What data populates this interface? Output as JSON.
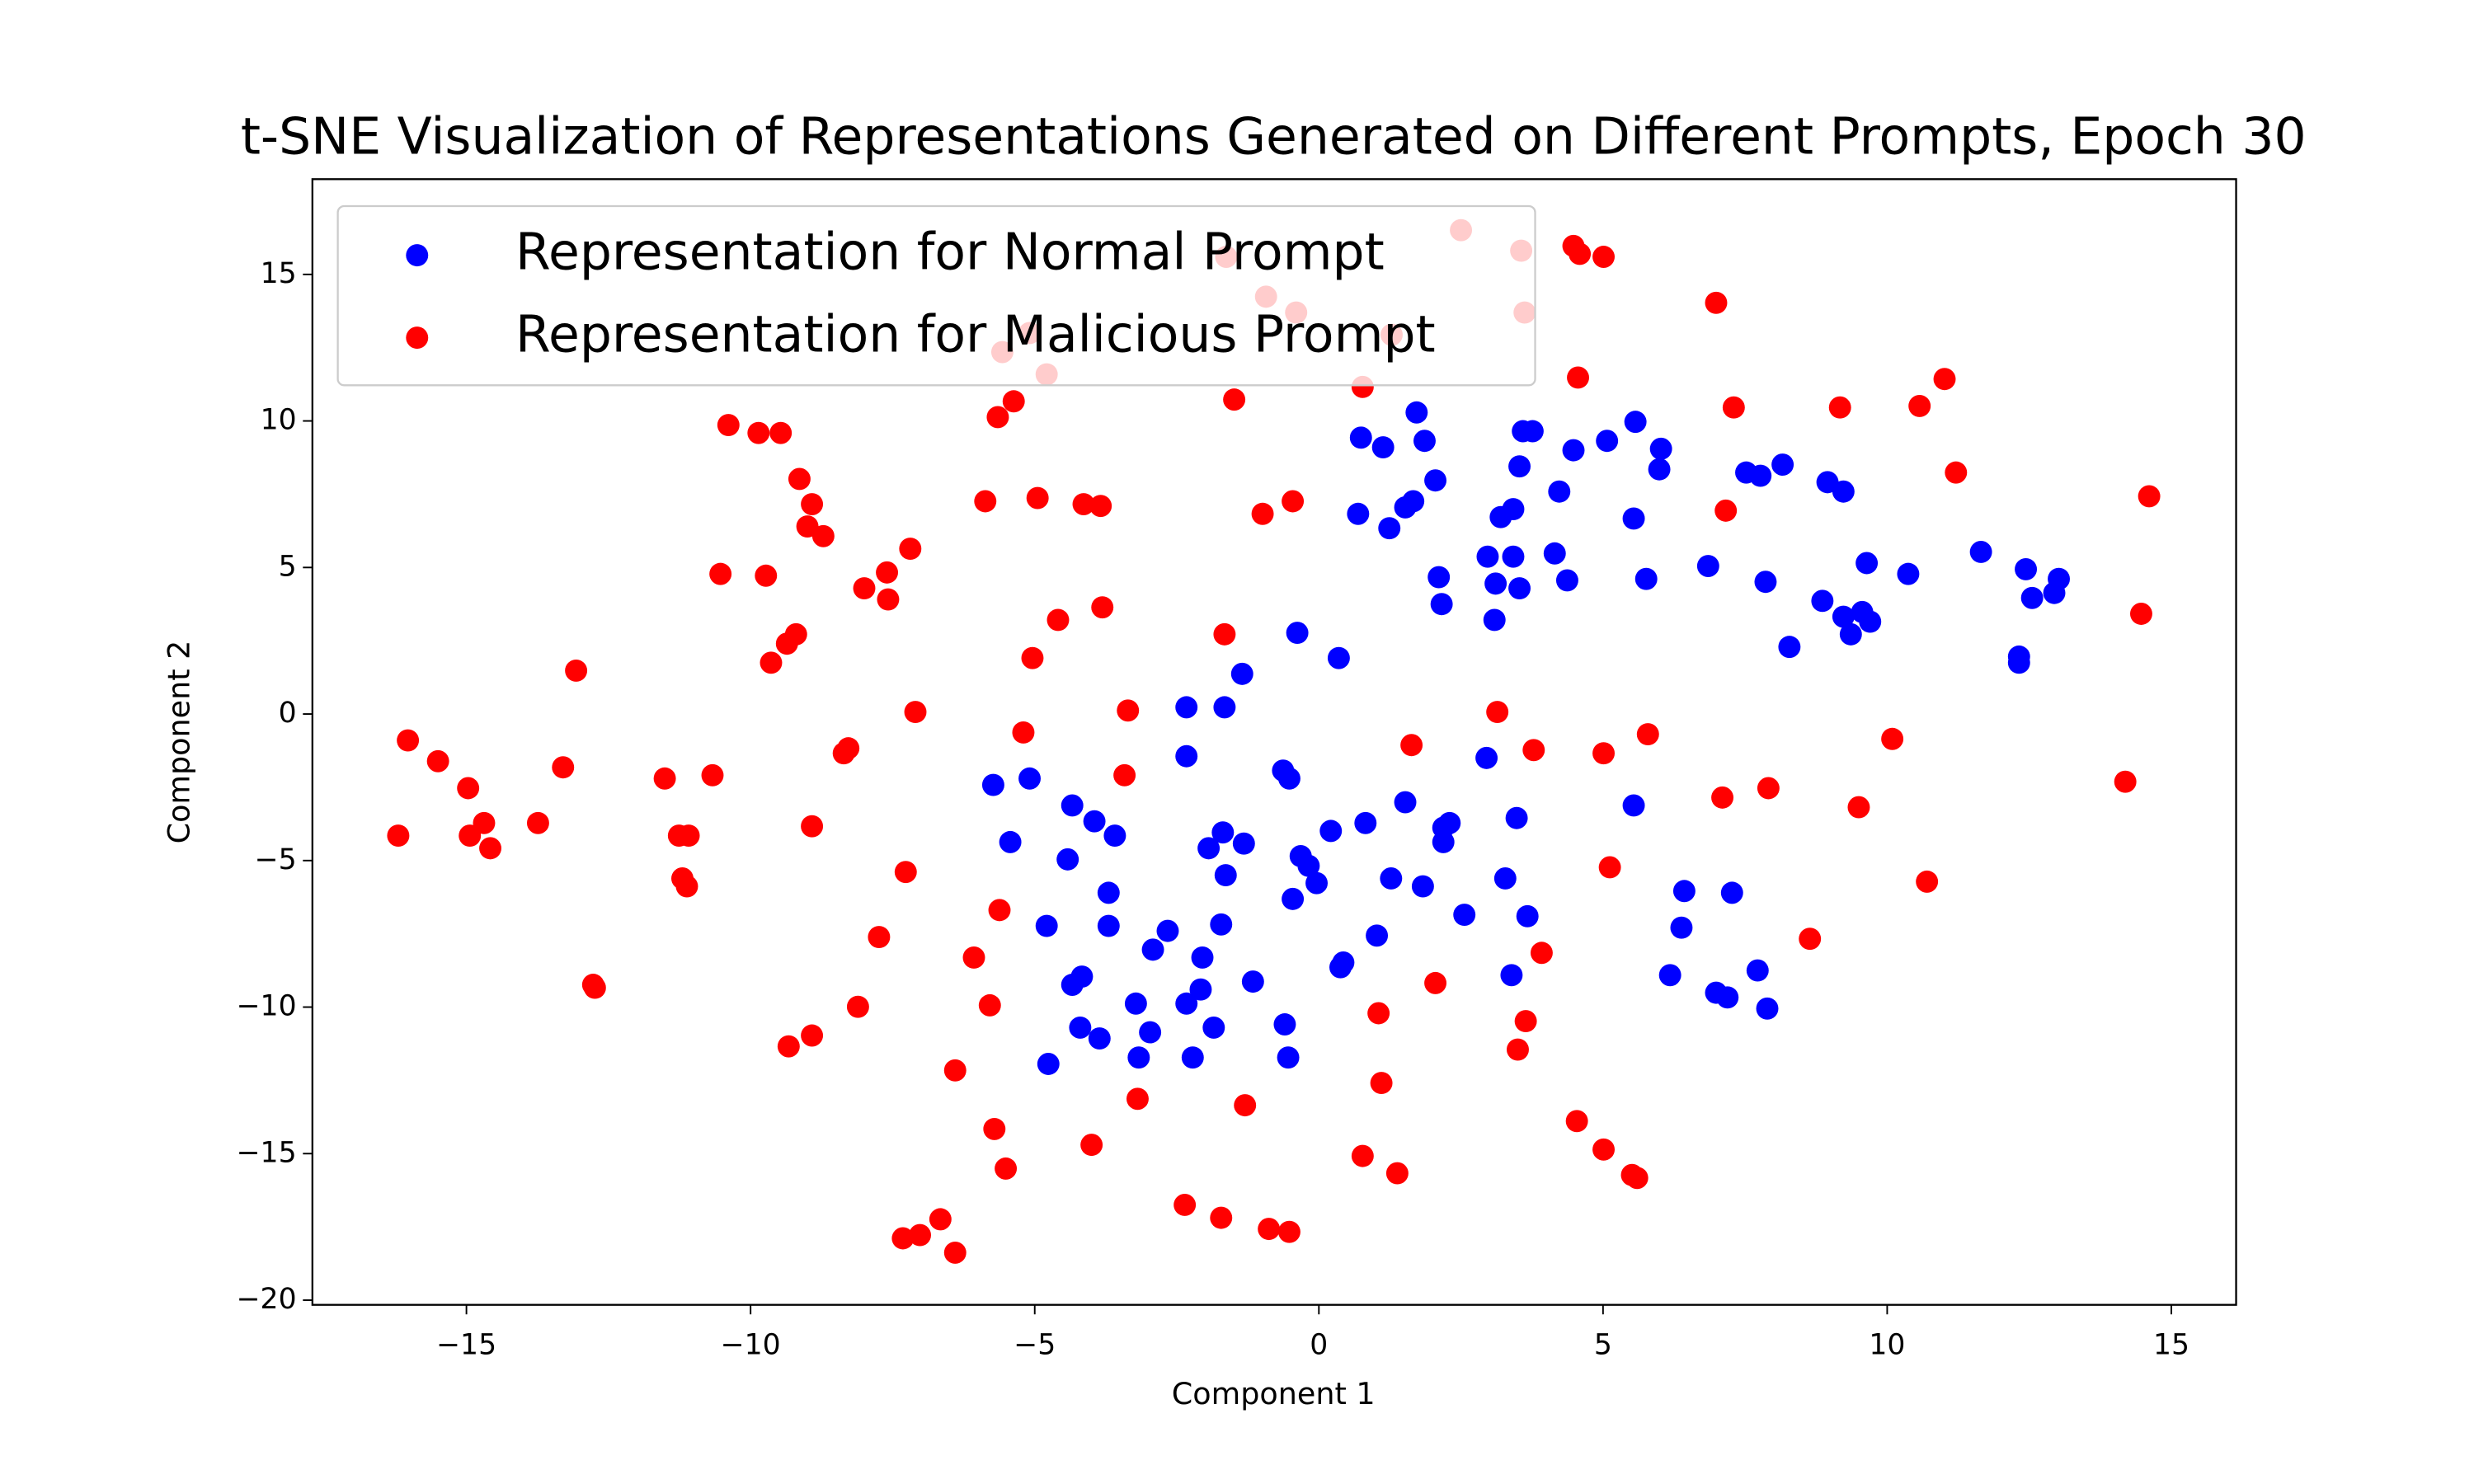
{
  "chart_data": {
    "type": "scatter",
    "title": "t-SNE Visualization of Representations Generated on Different Prompts, Epoch 30",
    "x_label": "Component 1",
    "y_label": "Component 2",
    "xlim": [
      -17.71,
      16.14
    ],
    "ylim": [
      -20.16,
      18.25
    ],
    "xticks": [
      {
        "value": -15,
        "label": "−15"
      },
      {
        "value": -10,
        "label": "−10"
      },
      {
        "value": -5,
        "label": "−5"
      },
      0,
      5,
      10,
      15
    ],
    "yticks": [
      {
        "value": -20,
        "label": "−20"
      },
      {
        "value": -15,
        "label": "−15"
      },
      {
        "value": -10,
        "label": "−10"
      },
      {
        "value": -5,
        "label": "−5"
      },
      0,
      5,
      10,
      15
    ],
    "legend": "upper left",
    "series": [
      {
        "name": "Representation for Normal Prompt",
        "color": "#0000ff",
        "x": [
          1.72,
          0.74,
          1.13,
          1.86,
          3.59,
          3.76,
          5.57,
          4.48,
          6.02,
          5.07,
          5.99,
          2.05,
          3.53,
          7.52,
          7.77,
          8.16,
          8.95,
          9.23,
          4.23,
          1.66,
          1.52,
          0.69,
          1.24,
          3.2,
          3.42,
          5.54,
          2.97,
          3.42,
          4.15,
          3.11,
          3.53,
          4.37,
          2.11,
          2.16,
          3.09,
          5.76,
          6.85,
          7.86,
          9.64,
          10.37,
          11.65,
          12.44,
          13.02,
          12.94,
          12.55,
          8.86,
          9.23,
          9.56,
          9.7,
          9.36,
          8.28,
          12.32,
          12.32,
          -0.38,
          0.35,
          -1.35,
          -2.33,
          -1.66,
          -2.33,
          -0.63,
          -0.52,
          -5.73,
          -5.09,
          -4.34,
          -3.95,
          -3.59,
          -5.43,
          -4.42,
          -1.94,
          -1.69,
          -1.32,
          -1.64,
          0.21,
          -0.32,
          -0.18,
          -0.04,
          -0.46,
          0.82,
          1.52,
          2.19,
          2.3,
          2.19,
          1.27,
          1.83,
          3.28,
          3.48,
          2.95,
          3.67,
          2.56,
          5.54,
          6.43,
          7.27,
          6.38,
          -3.7,
          -3.7,
          -4.79,
          -2.66,
          -1.72,
          -2.92,
          -2.05,
          1.02,
          0.38,
          0.43,
          -1.16,
          -2.08,
          -4.17,
          -4.34,
          -3.22,
          -2.33,
          -0.6,
          -4.2,
          -3.86,
          -2.97,
          -1.85,
          -3.17,
          -2.22,
          -0.54,
          -4.76,
          3.39,
          6.18,
          6.99,
          7.19,
          7.72,
          7.89
        ],
        "values": [
          10.29,
          9.43,
          9.1,
          9.32,
          9.65,
          9.65,
          9.97,
          9.0,
          9.05,
          9.32,
          8.35,
          7.97,
          8.45,
          8.24,
          8.13,
          8.51,
          7.91,
          7.59,
          7.59,
          7.26,
          7.05,
          6.83,
          6.34,
          6.72,
          6.99,
          6.67,
          5.37,
          5.37,
          5.48,
          4.45,
          4.29,
          4.56,
          4.67,
          3.75,
          3.21,
          4.61,
          5.05,
          4.51,
          5.15,
          4.78,
          5.53,
          4.94,
          4.61,
          4.13,
          3.96,
          3.86,
          3.32,
          3.48,
          3.15,
          2.72,
          2.29,
          1.96,
          1.75,
          2.77,
          1.91,
          1.37,
          0.23,
          0.23,
          -1.44,
          -1.93,
          -2.2,
          -2.42,
          -2.2,
          -3.12,
          -3.66,
          -4.15,
          -4.37,
          -4.96,
          -4.58,
          -4.04,
          -4.42,
          -5.5,
          -3.99,
          -4.85,
          -5.18,
          -5.77,
          -6.31,
          -3.72,
          -3.01,
          -3.88,
          -3.72,
          -4.37,
          -5.61,
          -5.88,
          -5.61,
          -3.55,
          -1.5,
          -6.9,
          -6.85,
          -3.12,
          -6.04,
          -6.1,
          -7.29,
          -6.1,
          -7.23,
          -7.23,
          -7.4,
          -7.18,
          -8.04,
          -8.31,
          -7.56,
          -8.64,
          -8.48,
          -9.13,
          -9.4,
          -8.96,
          -9.24,
          -9.88,
          -9.88,
          -10.59,
          -10.7,
          -11.07,
          -10.86,
          -10.7,
          -11.72,
          -11.72,
          -11.72,
          -11.94,
          -8.91,
          -8.91,
          -9.51,
          -9.67,
          -8.75,
          -10.05
        ]
      },
      {
        "name": "Representation for Malicious Prompt",
        "color": "#ff0000",
        "x": [
          2.5,
          4.48,
          4.59,
          5.01,
          3.56,
          -1.63,
          -0.93,
          -0.4,
          6.99,
          3.62,
          1.28,
          -5.09,
          -5.57,
          -4.79,
          4.56,
          0.77,
          11.01,
          -5.37,
          -5.65,
          -1.49,
          7.3,
          9.17,
          10.57,
          -10.39,
          -9.86,
          -9.47,
          -9.14,
          11.21,
          -8.92,
          -9.0,
          -8.72,
          -5.87,
          -4.95,
          -4.14,
          -3.84,
          -0.99,
          -0.46,
          7.16,
          14.61,
          -10.53,
          -9.73,
          -7.19,
          -7.6,
          -8.0,
          -7.58,
          -4.59,
          -3.81,
          -9.2,
          -9.36,
          -9.64,
          -5.04,
          -1.66,
          14.47,
          -13.07,
          -7.1,
          -3.36,
          3.14,
          -5.2,
          5.79,
          10.09,
          -16.03,
          1.63,
          3.78,
          5.01,
          -15.5,
          -8.36,
          -8.28,
          -13.3,
          -11.51,
          -10.67,
          -3.42,
          -14.97,
          14.19,
          7.1,
          7.91,
          9.5,
          -14.69,
          -13.74,
          -8.92,
          -16.2,
          -14.94,
          -14.58,
          -11.26,
          -11.09,
          5.12,
          -7.27,
          -11.2,
          -11.12,
          10.7,
          -5.62,
          -7.74,
          8.64,
          3.92,
          -6.07,
          -12.77,
          -12.74,
          2.05,
          -5.79,
          -8.11,
          1.05,
          3.64,
          -8.92,
          -9.33,
          3.5,
          -6.4,
          1.1,
          -3.19,
          -1.3,
          -5.71,
          4.54,
          5.01,
          -4.0,
          0.77,
          1.38,
          -5.51,
          5.51,
          5.6,
          -2.36,
          -1.72,
          -6.66,
          -0.88,
          -0.52,
          -7.02,
          -7.32,
          -6.4
        ],
        "values": [
          16.51,
          15.97,
          15.7,
          15.6,
          15.81,
          15.6,
          14.24,
          13.7,
          14.03,
          13.7,
          12.94,
          13.0,
          12.35,
          11.59,
          11.48,
          11.16,
          11.43,
          10.67,
          10.13,
          10.73,
          10.46,
          10.46,
          10.51,
          9.86,
          9.59,
          9.59,
          8.02,
          8.24,
          7.16,
          6.4,
          6.07,
          7.26,
          7.37,
          7.16,
          7.1,
          6.83,
          7.26,
          6.94,
          7.43,
          4.78,
          4.72,
          5.64,
          4.83,
          4.29,
          3.91,
          3.21,
          3.64,
          2.72,
          2.4,
          1.75,
          1.91,
          2.72,
          3.42,
          1.48,
          0.07,
          0.12,
          0.07,
          -0.63,
          -0.69,
          -0.85,
          -0.9,
          -1.06,
          -1.23,
          -1.34,
          -1.61,
          -1.34,
          -1.17,
          -1.82,
          -2.2,
          -2.09,
          -2.09,
          -2.53,
          -2.31,
          -2.85,
          -2.53,
          -3.18,
          -3.72,
          -3.72,
          -3.83,
          -4.15,
          -4.15,
          -4.58,
          -4.15,
          -4.15,
          -5.23,
          -5.39,
          -5.61,
          -5.88,
          -5.72,
          -6.69,
          -7.61,
          -7.67,
          -8.15,
          -8.31,
          -9.24,
          -9.34,
          -9.18,
          -9.94,
          -9.99,
          -10.21,
          -10.48,
          -10.97,
          -11.34,
          -11.45,
          -12.16,
          -12.59,
          -13.13,
          -13.35,
          -14.16,
          -13.89,
          -14.86,
          -14.7,
          -15.08,
          -15.67,
          -15.51,
          -15.73,
          -15.83,
          -16.75,
          -17.19,
          -17.24,
          -17.57,
          -17.67,
          -17.78,
          -17.89,
          -18.38
        ]
      }
    ]
  }
}
